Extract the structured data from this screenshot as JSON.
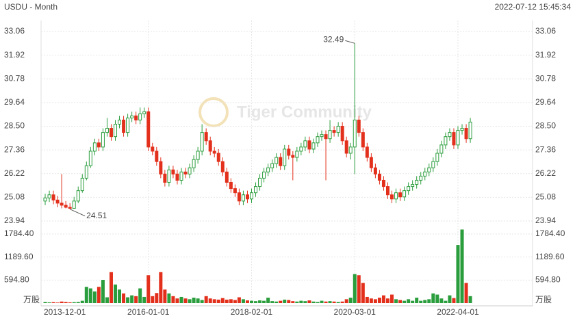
{
  "header": {
    "title": "USDU - Month",
    "timestamp": "2022-07-12 15:45:34"
  },
  "watermark": "Tiger Community",
  "chart_data": {
    "type": "candlestick",
    "categories": [
      "2013-12-01",
      null,
      null,
      null,
      null,
      null,
      null,
      null,
      null,
      null,
      null,
      null,
      null,
      null,
      null,
      null,
      null,
      null,
      null,
      null,
      null,
      null,
      null,
      null,
      null,
      "2016-01-01",
      null,
      null,
      null,
      null,
      null,
      null,
      null,
      null,
      null,
      null,
      null,
      null,
      null,
      null,
      null,
      null,
      null,
      null,
      null,
      null,
      null,
      null,
      null,
      null,
      "2018-02-01",
      null,
      null,
      null,
      null,
      null,
      null,
      null,
      null,
      null,
      null,
      null,
      null,
      null,
      null,
      null,
      null,
      null,
      null,
      null,
      null,
      null,
      null,
      null,
      null,
      "2020-03-01",
      null,
      null,
      null,
      null,
      null,
      null,
      null,
      null,
      null,
      null,
      null,
      null,
      null,
      null,
      null,
      null,
      null,
      null,
      null,
      null,
      null,
      null,
      null,
      null,
      "2022-04-01",
      null,
      null,
      null
    ],
    "open": [
      24.9,
      25.05,
      25.2,
      24.95,
      24.8,
      24.7,
      24.6,
      24.55,
      24.9,
      25.4,
      26.0,
      26.6,
      27.3,
      27.7,
      27.5,
      28.2,
      28.4,
      28.0,
      28.6,
      28.8,
      28.2,
      28.9,
      29.0,
      28.8,
      29.1,
      29.2,
      27.5,
      27.3,
      26.8,
      26.2,
      25.8,
      26.4,
      26.2,
      25.9,
      26.3,
      26.2,
      26.5,
      26.9,
      27.3,
      28.2,
      27.8,
      27.3,
      27.2,
      26.8,
      26.3,
      25.8,
      25.5,
      25.3,
      24.9,
      25.2,
      25.0,
      25.3,
      25.6,
      26.0,
      26.3,
      26.5,
      26.7,
      27.0,
      26.6,
      27.4,
      27.1,
      27.0,
      27.3,
      27.5,
      27.8,
      27.4,
      27.7,
      28.0,
      28.1,
      27.9,
      28.3,
      28.2,
      28.5,
      27.8,
      27.2,
      27.5,
      28.8,
      28.2,
      27.5,
      27.0,
      26.5,
      26.2,
      25.9,
      25.6,
      25.2,
      25.0,
      25.3,
      25.1,
      25.4,
      25.6,
      25.7,
      25.9,
      26.1,
      26.3,
      26.5,
      26.8,
      27.2,
      27.6,
      28.0,
      28.2,
      27.6,
      28.3,
      28.4,
      27.9
    ],
    "high": [
      25.25,
      25.4,
      25.4,
      25.15,
      26.2,
      24.9,
      24.8,
      25.1,
      25.6,
      26.2,
      26.8,
      27.5,
      27.9,
      27.9,
      28.4,
      28.9,
      28.6,
      28.8,
      29.0,
      29.0,
      29.1,
      29.2,
      29.2,
      29.4,
      29.4,
      29.4,
      27.7,
      27.5,
      27.0,
      26.4,
      26.6,
      26.6,
      26.4,
      26.5,
      26.5,
      26.7,
      27.1,
      27.5,
      28.6,
      28.4,
      28.0,
      27.5,
      27.4,
      27.0,
      26.5,
      26.0,
      25.7,
      25.5,
      25.4,
      25.4,
      25.5,
      25.8,
      26.2,
      26.5,
      26.7,
      26.9,
      27.2,
      27.2,
      27.6,
      27.6,
      27.3,
      27.5,
      27.7,
      28.0,
      28.0,
      27.9,
      28.2,
      28.3,
      28.3,
      28.8,
      28.5,
      28.7,
      28.7,
      28.0,
      27.7,
      32.49,
      29.0,
      28.4,
      27.7,
      27.2,
      26.7,
      26.4,
      26.1,
      25.8,
      25.4,
      25.5,
      25.5,
      25.6,
      25.8,
      25.9,
      26.1,
      26.3,
      26.5,
      26.7,
      27.0,
      27.4,
      27.8,
      28.2,
      28.4,
      28.4,
      28.5,
      28.6,
      28.6,
      28.9
    ],
    "low": [
      24.7,
      24.85,
      24.75,
      24.6,
      24.55,
      24.55,
      24.51,
      24.6,
      24.8,
      25.3,
      25.9,
      26.5,
      27.1,
      27.3,
      27.3,
      28.0,
      27.8,
      27.8,
      28.4,
      28.0,
      28.0,
      28.7,
      28.6,
      28.6,
      28.9,
      27.3,
      27.1,
      26.6,
      26.0,
      25.6,
      25.6,
      26.0,
      25.7,
      25.7,
      26.0,
      26.0,
      26.3,
      26.7,
      27.1,
      27.6,
      27.1,
      27.0,
      26.6,
      26.1,
      25.6,
      25.3,
      25.1,
      24.7,
      24.7,
      24.8,
      24.8,
      25.1,
      25.4,
      25.8,
      26.1,
      26.3,
      26.5,
      26.4,
      26.4,
      26.9,
      25.9,
      26.8,
      27.1,
      27.3,
      27.2,
      27.2,
      27.5,
      27.8,
      25.9,
      27.7,
      28.0,
      28.0,
      27.6,
      27.0,
      26.9,
      26.2,
      28.0,
      27.3,
      26.8,
      26.3,
      26.0,
      25.7,
      25.4,
      25.0,
      24.8,
      24.8,
      24.9,
      24.9,
      25.2,
      25.4,
      25.5,
      25.7,
      25.9,
      26.1,
      26.3,
      26.6,
      27.0,
      27.4,
      27.8,
      27.4,
      27.4,
      28.1,
      27.7,
      27.7
    ],
    "close": [
      25.05,
      25.2,
      24.95,
      24.8,
      24.7,
      24.6,
      24.55,
      24.9,
      25.4,
      26.0,
      26.6,
      27.3,
      27.7,
      27.5,
      28.2,
      28.4,
      28.0,
      28.6,
      28.8,
      28.2,
      28.9,
      29.0,
      28.8,
      29.1,
      29.2,
      27.5,
      27.3,
      26.8,
      26.2,
      25.8,
      26.4,
      26.2,
      25.9,
      26.3,
      26.2,
      26.5,
      26.9,
      27.3,
      28.2,
      27.8,
      27.3,
      27.2,
      26.8,
      26.3,
      25.8,
      25.5,
      25.3,
      24.9,
      25.2,
      25.0,
      25.3,
      25.6,
      26.0,
      26.3,
      26.5,
      26.7,
      27.0,
      26.6,
      27.4,
      27.1,
      27.0,
      27.3,
      27.5,
      27.8,
      27.4,
      27.7,
      28.0,
      28.1,
      27.9,
      28.3,
      28.2,
      28.5,
      27.8,
      27.2,
      27.5,
      28.8,
      28.2,
      27.5,
      27.0,
      26.5,
      26.2,
      25.9,
      25.6,
      25.2,
      25.0,
      25.3,
      25.1,
      25.4,
      25.6,
      25.7,
      25.9,
      26.1,
      26.3,
      26.5,
      26.8,
      27.2,
      27.6,
      28.0,
      28.2,
      27.6,
      28.3,
      28.4,
      27.9,
      28.7
    ],
    "volume": [
      30,
      20,
      25,
      15,
      40,
      30,
      20,
      25,
      30,
      60,
      420,
      380,
      300,
      420,
      600,
      150,
      800,
      480,
      350,
      250,
      150,
      200,
      180,
      380,
      160,
      720,
      180,
      260,
      800,
      350,
      250,
      180,
      120,
      160,
      120,
      100,
      140,
      120,
      80,
      180,
      120,
      100,
      90,
      130,
      90,
      100,
      80,
      150,
      100,
      70,
      60,
      50,
      70,
      60,
      140,
      50,
      40,
      60,
      90,
      80,
      50,
      40,
      60,
      50,
      70,
      40,
      30,
      60,
      40,
      50,
      40,
      30,
      40,
      100,
      140,
      750,
      720,
      520,
      160,
      120,
      100,
      140,
      200,
      120,
      220,
      100,
      80,
      60,
      100,
      60,
      140,
      60,
      80,
      100,
      250,
      220,
      120,
      60,
      200,
      130,
      1500,
      1900,
      520,
      180
    ],
    "ylim": [
      23.94,
      33.06
    ],
    "yticks": [
      33.06,
      31.92,
      30.78,
      29.64,
      {
        "value": 28.5,
        "label": "28.50"
      },
      27.36,
      26.22,
      25.08,
      23.94
    ],
    "volume_ylim": [
      0,
      1784.4
    ],
    "volume_yticks": [
      {
        "value": 1784.4,
        "label": "1784.40"
      },
      {
        "value": 1189.6,
        "label": "1189.60"
      },
      {
        "value": 594.8,
        "label": "594.80"
      }
    ],
    "volume_unit": "万股",
    "up_color": "#2a9d3c",
    "down_color": "#e3301c",
    "grid": true
  }
}
